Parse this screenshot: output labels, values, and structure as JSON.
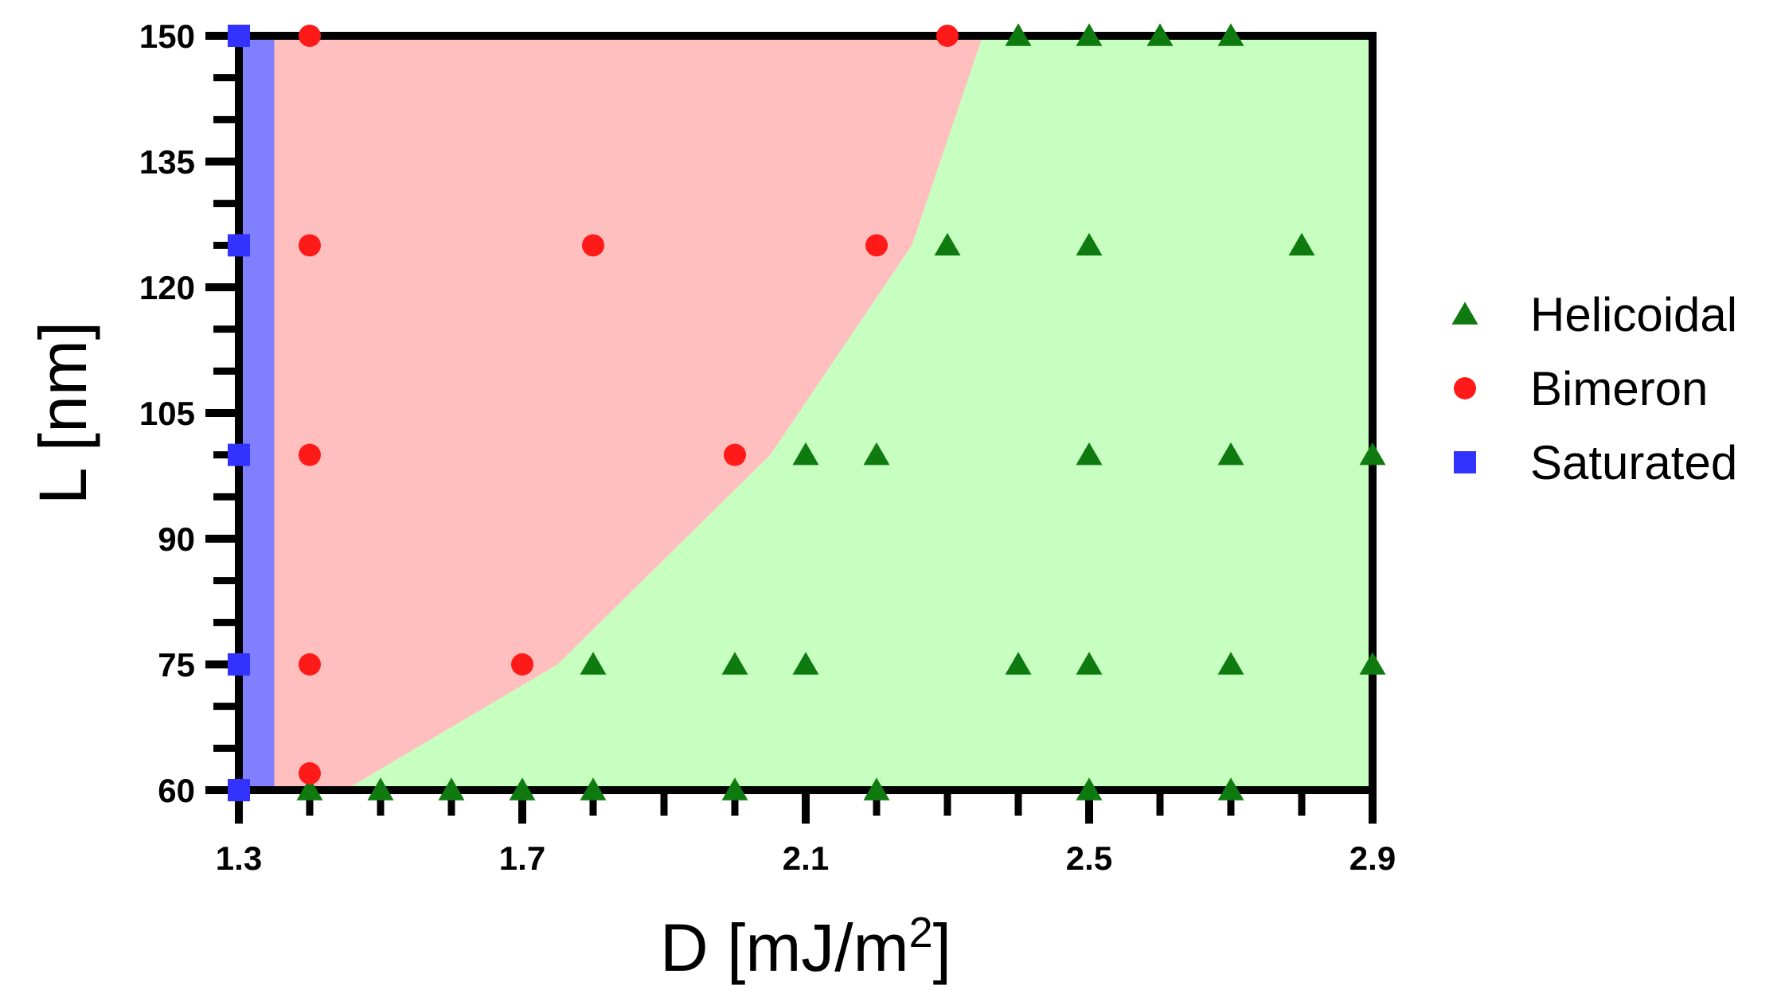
{
  "chart_data": {
    "type": "scatter",
    "xlabel": "D [mJ/m",
    "xlabel_sup": "2",
    "xlabel_end": "]",
    "ylabel": "L [nm]",
    "xlim": [
      1.3,
      2.9
    ],
    "ylim": [
      60,
      150
    ],
    "x_ticks": [
      1.3,
      1.7,
      2.1,
      2.5,
      2.9
    ],
    "x_tick_labels": [
      "1.3",
      "1.7",
      "2.1",
      "2.5",
      "2.9"
    ],
    "x_minor_step": 0.1,
    "y_ticks": [
      60,
      75,
      90,
      105,
      120,
      135,
      150
    ],
    "y_tick_labels": [
      "60",
      "75",
      "90",
      "105",
      "120",
      "135",
      "150"
    ],
    "y_minor_step": 5,
    "grid": false,
    "legend_position": "right",
    "regions": [
      {
        "name": "Saturated",
        "color": "#8080ff",
        "polygon": [
          [
            1.3,
            60
          ],
          [
            1.35,
            60
          ],
          [
            1.35,
            150
          ],
          [
            1.3,
            150
          ]
        ]
      },
      {
        "name": "Bimeron",
        "color": "#ffbfbf",
        "polygon": [
          [
            1.35,
            60
          ],
          [
            1.45,
            60
          ],
          [
            1.75,
            75
          ],
          [
            2.05,
            100
          ],
          [
            2.25,
            125
          ],
          [
            2.35,
            150
          ],
          [
            1.35,
            150
          ]
        ]
      },
      {
        "name": "Helicoidal",
        "color": "#c6ffc0",
        "polygon": [
          [
            1.45,
            60
          ],
          [
            2.9,
            60
          ],
          [
            2.9,
            150
          ],
          [
            2.35,
            150
          ],
          [
            2.25,
            125
          ],
          [
            2.05,
            100
          ],
          [
            1.75,
            75
          ]
        ]
      }
    ],
    "series": [
      {
        "name": "Helicoidal",
        "marker": "triangle",
        "color": "#0f7a0f",
        "points": [
          [
            2.4,
            150
          ],
          [
            2.5,
            150
          ],
          [
            2.6,
            150
          ],
          [
            2.7,
            150
          ],
          [
            2.3,
            125
          ],
          [
            2.5,
            125
          ],
          [
            2.8,
            125
          ],
          [
            2.1,
            100
          ],
          [
            2.2,
            100
          ],
          [
            2.5,
            100
          ],
          [
            2.7,
            100
          ],
          [
            2.9,
            100
          ],
          [
            1.8,
            75
          ],
          [
            2.0,
            75
          ],
          [
            2.1,
            75
          ],
          [
            2.4,
            75
          ],
          [
            2.5,
            75
          ],
          [
            2.7,
            75
          ],
          [
            2.9,
            75
          ],
          [
            1.4,
            60
          ],
          [
            1.5,
            60
          ],
          [
            1.6,
            60
          ],
          [
            1.7,
            60
          ],
          [
            1.8,
            60
          ],
          [
            2.0,
            60
          ],
          [
            2.2,
            60
          ],
          [
            2.5,
            60
          ],
          [
            2.7,
            60
          ]
        ]
      },
      {
        "name": "Bimeron",
        "marker": "circle",
        "color": "#ff1a1a",
        "points": [
          [
            1.4,
            150
          ],
          [
            2.3,
            150
          ],
          [
            1.4,
            125
          ],
          [
            1.8,
            125
          ],
          [
            2.2,
            125
          ],
          [
            1.4,
            100
          ],
          [
            2.0,
            100
          ],
          [
            1.4,
            75
          ],
          [
            1.7,
            75
          ],
          [
            1.4,
            62
          ]
        ]
      },
      {
        "name": "Saturated",
        "marker": "square",
        "color": "#3333ff",
        "points": [
          [
            1.3,
            150
          ],
          [
            1.3,
            125
          ],
          [
            1.3,
            100
          ],
          [
            1.3,
            75
          ],
          [
            1.3,
            60
          ]
        ]
      }
    ]
  }
}
